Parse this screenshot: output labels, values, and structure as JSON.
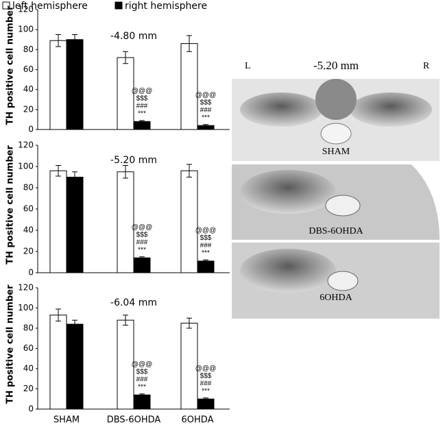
{
  "chart_data": {
    "type": "bar",
    "ylabel": "TH positive cell number",
    "categories": [
      "SHAM",
      "DBS-6OHDA",
      "6OHDA"
    ],
    "series": [
      {
        "name": "left hemisphere",
        "color": "#ffffff"
      },
      {
        "name": "right hemisphere",
        "color": "#000000"
      }
    ],
    "significance": [
      "@@@",
      "$$$",
      "###",
      "***"
    ],
    "ylim": [
      0,
      120
    ],
    "yticks": [
      0,
      20,
      40,
      60,
      80,
      100,
      120
    ],
    "panels": [
      {
        "title": "-4.80 mm",
        "values": [
          [
            89,
            72,
            86
          ],
          [
            90,
            8,
            4
          ]
        ],
        "errors": [
          [
            6,
            6,
            8
          ],
          [
            5,
            1,
            1
          ]
        ]
      },
      {
        "title": "-5.20 mm",
        "values": [
          [
            96,
            95,
            96
          ],
          [
            90,
            14,
            11
          ]
        ],
        "errors": [
          [
            5,
            6,
            6
          ],
          [
            5,
            1,
            1
          ]
        ]
      },
      {
        "title": "-6.04 mm",
        "values": [
          [
            93,
            88,
            85
          ],
          [
            84,
            14,
            10
          ]
        ],
        "errors": [
          [
            6,
            5,
            5
          ],
          [
            4,
            1,
            1
          ]
        ]
      }
    ]
  },
  "images": {
    "left": "L",
    "title": "-5.20 mm",
    "right": "R",
    "labels": [
      "SHAM",
      "DBS-6OHDA",
      "6OHDA"
    ]
  }
}
